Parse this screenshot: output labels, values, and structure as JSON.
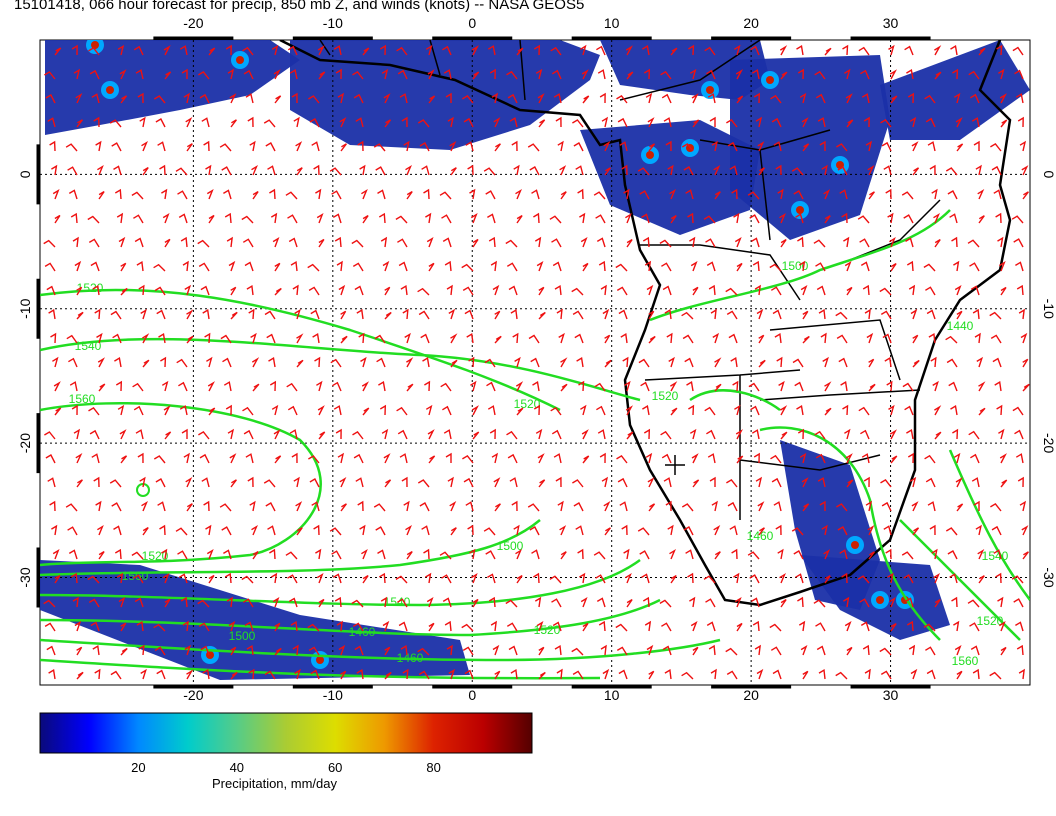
{
  "title": "15101418, 066 hour forecast for precip, 850 mb Z, and winds (knots) -- NASA GEOS5",
  "map": {
    "lon_range": [
      -31,
      40
    ],
    "lat_range": [
      -38,
      10
    ],
    "lon_ticks": [
      "-20",
      "-10",
      "0",
      "10",
      "20",
      "30"
    ],
    "lat_ticks": [
      "0",
      "-10",
      "-20",
      "-30"
    ],
    "grid": "dotted",
    "contour_color": "#22dd22",
    "wind_barb_color": "#ee1111",
    "coastline_color": "#000000",
    "contour_labels": [
      "1520",
      "1540",
      "1560",
      "1520",
      "1500",
      "1520",
      "1560",
      "1540",
      "1520",
      "1500",
      "1460",
      "1460",
      "1440",
      "1520",
      "1500",
      "1460",
      "1540",
      "1520",
      "1560"
    ]
  },
  "colorbar": {
    "colors": [
      "#0a0a7a",
      "#0000ff",
      "#0088ff",
      "#00cccc",
      "#55cc88",
      "#aacc33",
      "#dddd00",
      "#ee9900",
      "#dd2200",
      "#bb0000",
      "#550000"
    ],
    "ticks": [
      "20",
      "40",
      "60",
      "80"
    ],
    "label": "Precipitation, mm/day"
  }
}
